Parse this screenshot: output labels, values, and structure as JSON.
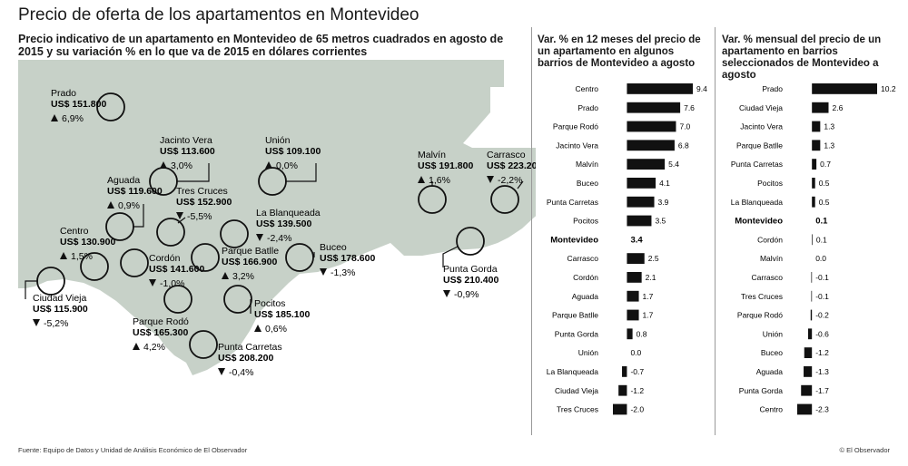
{
  "title": "Precio de oferta de los apartamentos en Montevideo",
  "subtitle": "Precio indicativo de un apartamento en Montevideo de 65 metros cuadrados en agosto de 2015 y su variación % en lo que va de 2015 en dólares corrientes",
  "colors": {
    "map_fill": "#c7d1c8",
    "bar": "#111111",
    "text": "#1a1a1a"
  },
  "neighborhoods": [
    {
      "name": "Prado",
      "price": "US$ 151.800",
      "variation": "6,9%",
      "direction": "up"
    },
    {
      "name": "Jacinto Vera",
      "price": "US$ 113.600",
      "variation": "3,0%",
      "direction": "up"
    },
    {
      "name": "Unión",
      "price": "US$ 109.100",
      "variation": "0,0%",
      "direction": "up"
    },
    {
      "name": "Aguada",
      "price": "US$ 119.600",
      "variation": "0,9%",
      "direction": "up"
    },
    {
      "name": "Tres Cruces",
      "price": "US$ 152.900",
      "variation": "-5,5%",
      "direction": "down"
    },
    {
      "name": "La Blanqueada",
      "price": "US$ 139.500",
      "variation": "-2,4%",
      "direction": "down"
    },
    {
      "name": "Malvín",
      "price": "US$ 191.800",
      "variation": "1,6%",
      "direction": "up"
    },
    {
      "name": "Carrasco",
      "price": "US$ 223.200",
      "variation": "-2,2%",
      "direction": "down"
    },
    {
      "name": "Centro",
      "price": "US$ 130.900",
      "variation": "1,5%",
      "direction": "up"
    },
    {
      "name": "Cordón",
      "price": "US$ 141.600",
      "variation": "-1,0%",
      "direction": "down"
    },
    {
      "name": "Parque Batlle",
      "price": "US$ 166.900",
      "variation": "3,2%",
      "direction": "up"
    },
    {
      "name": "Buceo",
      "price": "US$ 178.600",
      "variation": "-1,3%",
      "direction": "down"
    },
    {
      "name": "Ciudad Vieja",
      "price": "US$ 115.900",
      "variation": "-5,2%",
      "direction": "down"
    },
    {
      "name": "Pocitos",
      "price": "US$ 185.100",
      "variation": "0,6%",
      "direction": "up"
    },
    {
      "name": "Parque Rodó",
      "price": "US$ 165.300",
      "variation": "4,2%",
      "direction": "up"
    },
    {
      "name": "Punta Carretas",
      "price": "US$ 208.200",
      "variation": "-0,4%",
      "direction": "down"
    },
    {
      "name": "Punta Gorda",
      "price": "US$ 210.400",
      "variation": "-0,9%",
      "direction": "down"
    }
  ],
  "chart_data": [
    {
      "type": "bar",
      "orientation": "horizontal",
      "title": "Var. % en 12 meses del precio de un apartamento en algunos barrios de Montevideo a agosto",
      "categories": [
        "Centro",
        "Prado",
        "Parque Rodó",
        "Jacinto Vera",
        "Malvín",
        "Buceo",
        "Punta Carretas",
        "Pocitos",
        "Montevideo",
        "Carrasco",
        "Cordón",
        "Aguada",
        "Parque Batlle",
        "Punta Gorda",
        "Unión",
        "La Blanqueada",
        "Ciudad Vieja",
        "Tres Cruces"
      ],
      "values": [
        9.4,
        7.6,
        7.0,
        6.8,
        5.4,
        4.1,
        3.9,
        3.5,
        3.4,
        2.5,
        2.1,
        1.7,
        1.7,
        0.8,
        0.0,
        -0.7,
        -1.2,
        -2.0
      ],
      "value_labels": [
        "9.4",
        "7.6",
        "7.0",
        "6.8",
        "5.4",
        "4.1",
        "3.9",
        "3.5",
        "3.4",
        "2.5",
        "2.1",
        "1.7",
        "1.7",
        "0.8",
        "0.0",
        "-0.7",
        "-1.2",
        "-2.0"
      ],
      "highlight": "Montevideo",
      "xlim": [
        -2.0,
        9.4
      ]
    },
    {
      "type": "bar",
      "orientation": "horizontal",
      "title": "Var. % mensual del precio de un apartamento en barrios seleccionados de Montevideo a agosto",
      "categories": [
        "Prado",
        "Ciudad Vieja",
        "Jacinto Vera",
        "Parque Batlle",
        "Punta Carretas",
        "Pocitos",
        "La Blanqueada",
        "Montevideo",
        "Cordón",
        "Malvín",
        "Carrasco",
        "Tres Cruces",
        "Parque Rodó",
        "Unión",
        "Buceo",
        "Aguada",
        "Punta Gorda",
        "Centro"
      ],
      "values": [
        10.2,
        2.6,
        1.3,
        1.3,
        0.7,
        0.5,
        0.5,
        0.1,
        0.1,
        0.0,
        -0.1,
        -0.1,
        -0.2,
        -0.6,
        -1.2,
        -1.3,
        -1.7,
        -2.3
      ],
      "value_labels": [
        "10.2",
        "2.6",
        "1.3",
        "1.3",
        "0.7",
        "0.5",
        "0.5",
        "0.1",
        "0.1",
        "0.0",
        "-0.1",
        "-0.1",
        "-0.2",
        "-0.6",
        "-1.2",
        "-1.3",
        "-1.7",
        "-2.3"
      ],
      "highlight": "Montevideo",
      "xlim": [
        -2.3,
        10.2
      ]
    }
  ],
  "footer": {
    "source": "Fuente: Equipo de Datos y Unidad de Análisis Económico de El Observador",
    "credit": "© El Observador"
  }
}
